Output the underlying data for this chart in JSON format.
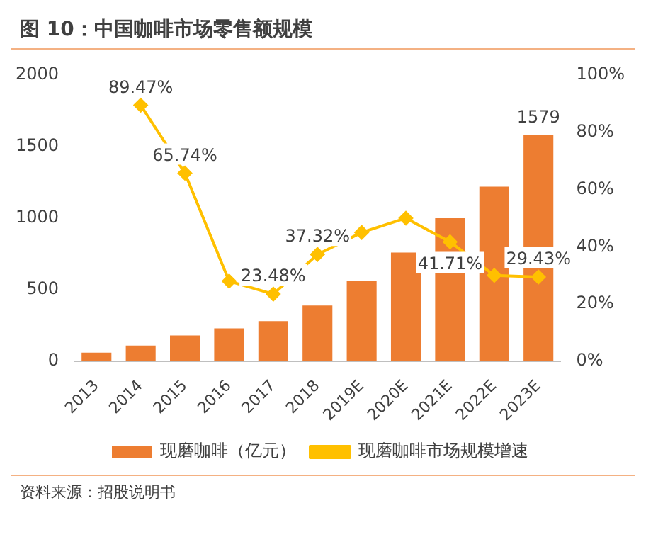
{
  "chart_data": {
    "type": "bar",
    "title": "图 10：中国咖啡市场零售额规模",
    "categories": [
      "2013",
      "2014",
      "2015",
      "2016",
      "2017",
      "2018",
      "2019E",
      "2020E",
      "2021E",
      "2022E",
      "2023E"
    ],
    "series": [
      {
        "name": "现磨咖啡（亿元）",
        "color": "#ed7d31",
        "values": [
          60,
          110,
          180,
          230,
          280,
          390,
          560,
          760,
          1000,
          1220,
          1579
        ],
        "value_labels": [
          null,
          null,
          null,
          null,
          null,
          null,
          null,
          null,
          null,
          null,
          "1579"
        ]
      },
      {
        "name": "现磨咖啡市场规模增速",
        "type": "line",
        "axis": "y2",
        "color": "#ffc000",
        "values": [
          null,
          89.47,
          65.74,
          28,
          23.48,
          37.32,
          45,
          50,
          41.71,
          30,
          29.43
        ],
        "value_labels": [
          null,
          "89.47%",
          "65.74%",
          null,
          "23.48%",
          "37.32%",
          null,
          null,
          "41.71%",
          null,
          "29.43%"
        ]
      }
    ],
    "ylim": [
      0,
      2000
    ],
    "yticks": [
      0,
      500,
      1000,
      1500,
      2000
    ],
    "y2lim": [
      0,
      100
    ],
    "y2ticks": [
      {
        "value": 0,
        "label": "0%"
      },
      {
        "value": 20,
        "label": "20%"
      },
      {
        "value": 40,
        "label": "40%"
      },
      {
        "value": 60,
        "label": "60%"
      },
      {
        "value": 80,
        "label": "80%"
      },
      {
        "value": 100,
        "label": "100%"
      }
    ],
    "grid": false,
    "legend": "bottom",
    "marker": "diamond",
    "annotations": [
      "资料来源：招股说明书"
    ]
  }
}
